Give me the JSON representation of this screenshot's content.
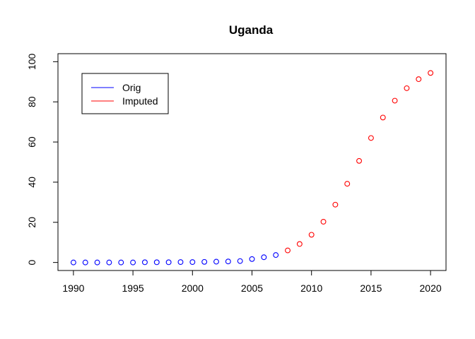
{
  "chart_data": {
    "type": "scatter",
    "title": "Uganda",
    "xlabel": "",
    "ylabel": "",
    "xlim": [
      1988.7,
      2021.3
    ],
    "ylim": [
      -4,
      104
    ],
    "x_ticks": [
      1990,
      1995,
      2000,
      2005,
      2010,
      2015,
      2020
    ],
    "y_ticks": [
      0,
      20,
      40,
      60,
      80,
      100
    ],
    "grid": false,
    "legend": {
      "position": "top-left"
    },
    "series": [
      {
        "name": "Orig",
        "color": "#0000ff",
        "marker": "open-circle",
        "points": [
          [
            1990,
            0.0
          ],
          [
            1991,
            0.0
          ],
          [
            1992,
            0.0
          ],
          [
            1993,
            0.0
          ],
          [
            1994,
            0.0
          ],
          [
            1995,
            0.0
          ],
          [
            1996,
            0.1
          ],
          [
            1997,
            0.1
          ],
          [
            1998,
            0.1
          ],
          [
            1999,
            0.2
          ],
          [
            2000,
            0.2
          ],
          [
            2001,
            0.3
          ],
          [
            2002,
            0.4
          ],
          [
            2003,
            0.5
          ],
          [
            2004,
            0.7
          ],
          [
            2005,
            1.7
          ],
          [
            2006,
            2.6
          ],
          [
            2007,
            3.7
          ]
        ]
      },
      {
        "name": "Imputed",
        "color": "#ff0000",
        "marker": "open-circle",
        "points": [
          [
            2008,
            6.0
          ],
          [
            2009,
            9.2
          ],
          [
            2010,
            13.8
          ],
          [
            2011,
            20.3
          ],
          [
            2012,
            28.8
          ],
          [
            2013,
            39.2
          ],
          [
            2014,
            50.6
          ],
          [
            2015,
            62.0
          ],
          [
            2016,
            72.2
          ],
          [
            2017,
            80.6
          ],
          [
            2018,
            86.8
          ],
          [
            2019,
            91.3
          ],
          [
            2020,
            94.4
          ]
        ]
      }
    ]
  }
}
